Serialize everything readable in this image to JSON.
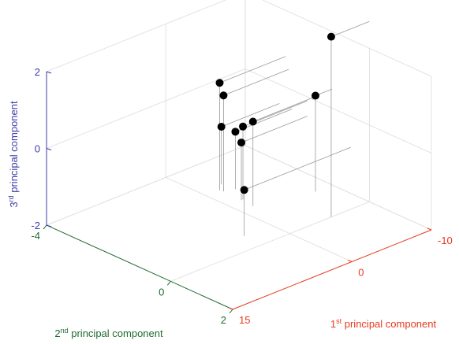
{
  "chart_data": {
    "type": "scatter",
    "title": "",
    "projection": "3d",
    "grid": true,
    "colors": {
      "x_axis": "#e8391f",
      "y_axis": "#1f6b2e",
      "z_axis": "#3c3ca8",
      "points": "#000000",
      "grid": "#dcdcdc",
      "drop_lines": "#9a9a9a"
    },
    "xlim": [
      -10,
      15
    ],
    "ylim": [
      -4,
      2
    ],
    "zlim": [
      -2,
      2
    ],
    "x_ticks": [
      -10,
      0,
      15
    ],
    "y_ticks": [
      -4,
      0,
      2
    ],
    "z_ticks": [
      -2,
      0,
      2
    ],
    "x_tick_labels": [
      "-10",
      "0",
      "15"
    ],
    "y_tick_labels": [
      "-4",
      "0",
      "2"
    ],
    "z_tick_labels": [
      "-2",
      "0",
      "2"
    ],
    "xlabel": {
      "prefix": "1",
      "sup": "st",
      "rest": " principal component"
    },
    "ylabel": {
      "prefix": "2",
      "sup": "nd",
      "rest": " principal component"
    },
    "zlabel": {
      "prefix": "3",
      "sup": "rd",
      "rest": " principal component"
    },
    "points": [
      {
        "x": 3.4,
        "y": -0.6,
        "z": -0.8
      },
      {
        "x": -5.2,
        "y": 0.0,
        "z": 2.7
      },
      {
        "x": -1.8,
        "y": -2.6,
        "z": 0.5
      },
      {
        "x": -7.9,
        "y": -1.2,
        "z": 0.5
      },
      {
        "x": -1.6,
        "y": -1.6,
        "z": 0.2
      },
      {
        "x": -1.9,
        "y": -2.0,
        "z": -0.1
      },
      {
        "x": -1.7,
        "y": -2.7,
        "z": 0.8
      },
      {
        "x": -1.7,
        "y": -2.0,
        "z": -0.5
      },
      {
        "x": -2.9,
        "y": -2.5,
        "z": -0.5
      },
      {
        "x": -2.7,
        "y": -2.9,
        "z": -0.5
      }
    ]
  }
}
